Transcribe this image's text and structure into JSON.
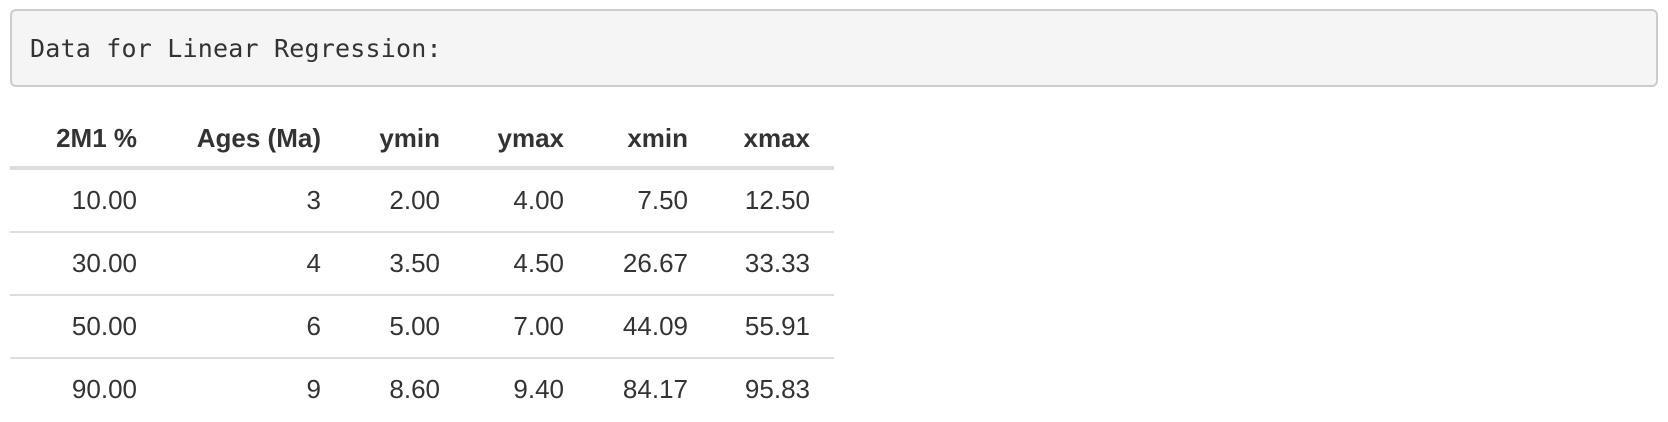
{
  "output": {
    "code_text": "Data for Linear Regression:"
  },
  "table": {
    "columns": [
      "2M1 %",
      "Ages (Ma)",
      "ymin",
      "ymax",
      "xmin",
      "xmax"
    ],
    "rows": [
      [
        "10.00",
        "3",
        "2.00",
        "4.00",
        "7.50",
        "12.50"
      ],
      [
        "30.00",
        "4",
        "3.50",
        "4.50",
        "26.67",
        "33.33"
      ],
      [
        "50.00",
        "6",
        "5.00",
        "7.00",
        "44.09",
        "55.91"
      ],
      [
        "90.00",
        "9",
        "8.60",
        "9.40",
        "84.17",
        "95.83"
      ]
    ]
  }
}
